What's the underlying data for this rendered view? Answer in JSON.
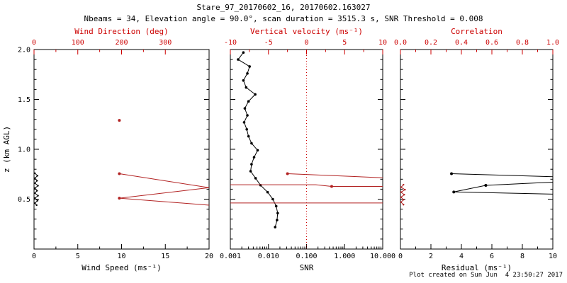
{
  "chart_data": {
    "title": "Stare_97_20170602_16, 20170602.163027",
    "subtitle": "Nbeams = 34, Elevation angle = 90.0°, scan duration = 3515.3 s, SNR Threshold = 0.008",
    "footer": "Plot created on Sun Jun  4 23:50:27 2017",
    "colors": {
      "axis_red": "#cc0000",
      "series_red": "#b22222",
      "black": "#000000",
      "background": "#ffffff"
    },
    "panels": [
      {
        "name": "wind-panel",
        "type": "line",
        "y_axis": {
          "label": "z (km AGL)",
          "range": [
            0,
            2
          ],
          "ticks": [
            0.5,
            1.0,
            1.5,
            2.0
          ],
          "tick_labels": [
            "0.5",
            "1.0",
            "1.5",
            "2.0"
          ]
        },
        "bottom_axis": {
          "label": "Wind Speed (ms⁻¹)",
          "range": [
            0,
            20
          ],
          "scale": "linear",
          "ticks": [
            0,
            5,
            10,
            15,
            20
          ],
          "tick_labels": [
            "0",
            "5",
            "10",
            "15",
            "20"
          ],
          "color": "#000000"
        },
        "top_axis": {
          "label": "Wind Direction (deg)",
          "range": [
            0,
            400
          ],
          "scale": "linear",
          "ticks": [
            0,
            100,
            200,
            300
          ],
          "tick_labels": [
            "0",
            "100",
            "200",
            "300"
          ],
          "color": "#cc0000"
        },
        "series": [
          {
            "name": "wind-speed-profile",
            "axis": "bottom",
            "color": "#000000",
            "marker_size": 1.2,
            "mark_points": true,
            "lines": [
              [
                [
                  0.1,
                  0.76
                ],
                [
                  0.4,
                  0.735
                ],
                [
                  0.1,
                  0.71
                ],
                [
                  0.35,
                  0.685
                ],
                [
                  0.1,
                  0.66
                ],
                [
                  0.45,
                  0.635
                ],
                [
                  0.1,
                  0.61
                ],
                [
                  0.35,
                  0.585
                ],
                [
                  0.1,
                  0.56
                ],
                [
                  0.45,
                  0.535
                ],
                [
                  0.1,
                  0.51
                ],
                [
                  0.4,
                  0.485
                ],
                [
                  0.1,
                  0.46
                ],
                [
                  0.3,
                  0.44
                ]
              ]
            ],
            "markers": []
          },
          {
            "name": "wind-direction-profile",
            "axis": "top",
            "color": "#b22222",
            "marker_size": 2,
            "lines": [
              [
                [
                  195,
                  0.755
                ],
                [
                  400,
                  0.615
                ]
              ],
              [
                [
                  400,
                  0.615
                ],
                [
                  195,
                  0.51
                ]
              ],
              [
                [
                  195,
                  0.51
                ],
                [
                  400,
                  0.44
                ]
              ]
            ],
            "markers": [
              [
                195,
                1.29
              ],
              [
                195,
                0.755
              ],
              [
                195,
                0.51
              ]
            ]
          }
        ]
      },
      {
        "name": "snr-panel",
        "type": "line",
        "y_axis": {
          "label": "",
          "range": [
            0,
            2
          ],
          "ticks": [
            0.5,
            1.0,
            1.5,
            2.0
          ],
          "tick_labels": []
        },
        "bottom_axis": {
          "label": "SNR",
          "range": [
            0.001,
            10
          ],
          "scale": "log",
          "ticks": [
            0.001,
            0.01,
            0.1,
            1,
            10
          ],
          "tick_labels": [
            "0.001",
            "0.010",
            "0.100",
            "1.000",
            "10.000"
          ],
          "color": "#000000"
        },
        "top_axis": {
          "label": "Vertical velocity (ms⁻¹)",
          "range": [
            -10,
            10
          ],
          "scale": "linear",
          "ticks": [
            -10,
            -5,
            0,
            5,
            10
          ],
          "tick_labels": [
            "-10",
            "-5",
            "0",
            "5",
            "10"
          ],
          "color": "#cc0000"
        },
        "vline": {
          "axis": "top",
          "value": 0,
          "color": "#cc0000",
          "style": "dotted"
        },
        "series": [
          {
            "name": "snr-profile",
            "axis": "bottom",
            "color": "#000000",
            "marker_size": 1.8,
            "mark_points": true,
            "lines": [
              [
                [
                  0.0022,
                  1.97
                ],
                [
                  0.0016,
                  1.9
                ],
                [
                  0.0032,
                  1.83
                ],
                [
                  0.0028,
                  1.76
                ],
                [
                  0.0022,
                  1.69
                ],
                [
                  0.0026,
                  1.62
                ],
                [
                  0.0045,
                  1.55
                ],
                [
                  0.003,
                  1.48
                ],
                [
                  0.0024,
                  1.41
                ],
                [
                  0.0028,
                  1.34
                ],
                [
                  0.0023,
                  1.27
                ],
                [
                  0.0027,
                  1.2
                ],
                [
                  0.003,
                  1.13
                ],
                [
                  0.0036,
                  1.06
                ],
                [
                  0.0052,
                  0.99
                ],
                [
                  0.0042,
                  0.92
                ],
                [
                  0.0036,
                  0.85
                ],
                [
                  0.0034,
                  0.78
                ],
                [
                  0.0046,
                  0.71
                ],
                [
                  0.0062,
                  0.64
                ],
                [
                  0.0095,
                  0.57
                ],
                [
                  0.013,
                  0.5
                ],
                [
                  0.016,
                  0.43
                ],
                [
                  0.0175,
                  0.36
                ],
                [
                  0.0168,
                  0.29
                ],
                [
                  0.015,
                  0.22
                ]
              ]
            ],
            "markers": []
          },
          {
            "name": "vertical-velocity-profile",
            "axis": "top",
            "color": "#b22222",
            "marker_size": 2,
            "lines": [
              [
                [
                  -2.5,
                  0.755
                ],
                [
                  10,
                  0.715
                ]
              ],
              [
                [
                  -10,
                  0.645
                ],
                [
                  1.2,
                  0.645
                ],
                [
                  3.3,
                  0.628
                ],
                [
                  10,
                  0.628
                ]
              ],
              [
                [
                  -10,
                  0.462
                ],
                [
                  10,
                  0.462
                ]
              ]
            ],
            "markers": [
              [
                -2.5,
                0.755
              ],
              [
                3.3,
                0.628
              ]
            ]
          }
        ]
      },
      {
        "name": "residual-panel",
        "type": "line",
        "y_axis": {
          "label": "",
          "range": [
            0,
            2
          ],
          "ticks": [
            0.5,
            1.0,
            1.5,
            2.0
          ],
          "tick_labels": []
        },
        "bottom_axis": {
          "label": "Residual (ms⁻¹)",
          "range": [
            0,
            10
          ],
          "scale": "linear",
          "ticks": [
            0,
            2,
            4,
            6,
            8,
            10
          ],
          "tick_labels": [
            "0",
            "2",
            "4",
            "6",
            "8",
            "10"
          ],
          "color": "#000000"
        },
        "top_axis": {
          "label": "Correlation",
          "range": [
            0,
            1
          ],
          "scale": "linear",
          "ticks": [
            0,
            0.2,
            0.4,
            0.6,
            0.8,
            1.0
          ],
          "tick_labels": [
            "0.0",
            "0.2",
            "0.4",
            "0.6",
            "0.8",
            "1.0"
          ],
          "color": "#cc0000"
        },
        "series": [
          {
            "name": "residual-profile",
            "axis": "bottom",
            "color": "#000000",
            "marker_size": 2,
            "lines": [
              [
                [
                  3.35,
                  0.755
                ],
                [
                  10,
                  0.725
                ]
              ],
              [
                [
                  10,
                  0.67
                ],
                [
                  5.6,
                  0.638
                ],
                [
                  3.5,
                  0.572
                ],
                [
                  10,
                  0.55
                ]
              ]
            ],
            "markers": [
              [
                3.35,
                0.755
              ],
              [
                5.6,
                0.638
              ],
              [
                3.5,
                0.572
              ]
            ]
          },
          {
            "name": "correlation-profile",
            "axis": "top",
            "color": "#b22222",
            "marker_size": 1.2,
            "mark_points": true,
            "lines": [
              [
                [
                  0.02,
                  0.645
                ],
                [
                  0.004,
                  0.62
                ],
                [
                  0.03,
                  0.595
                ],
                [
                  0.004,
                  0.57
                ],
                [
                  0.025,
                  0.545
                ],
                [
                  0.004,
                  0.52
                ],
                [
                  0.02,
                  0.495
                ],
                [
                  0.004,
                  0.47
                ],
                [
                  0.02,
                  0.445
                ]
              ]
            ],
            "markers": []
          }
        ]
      }
    ]
  }
}
